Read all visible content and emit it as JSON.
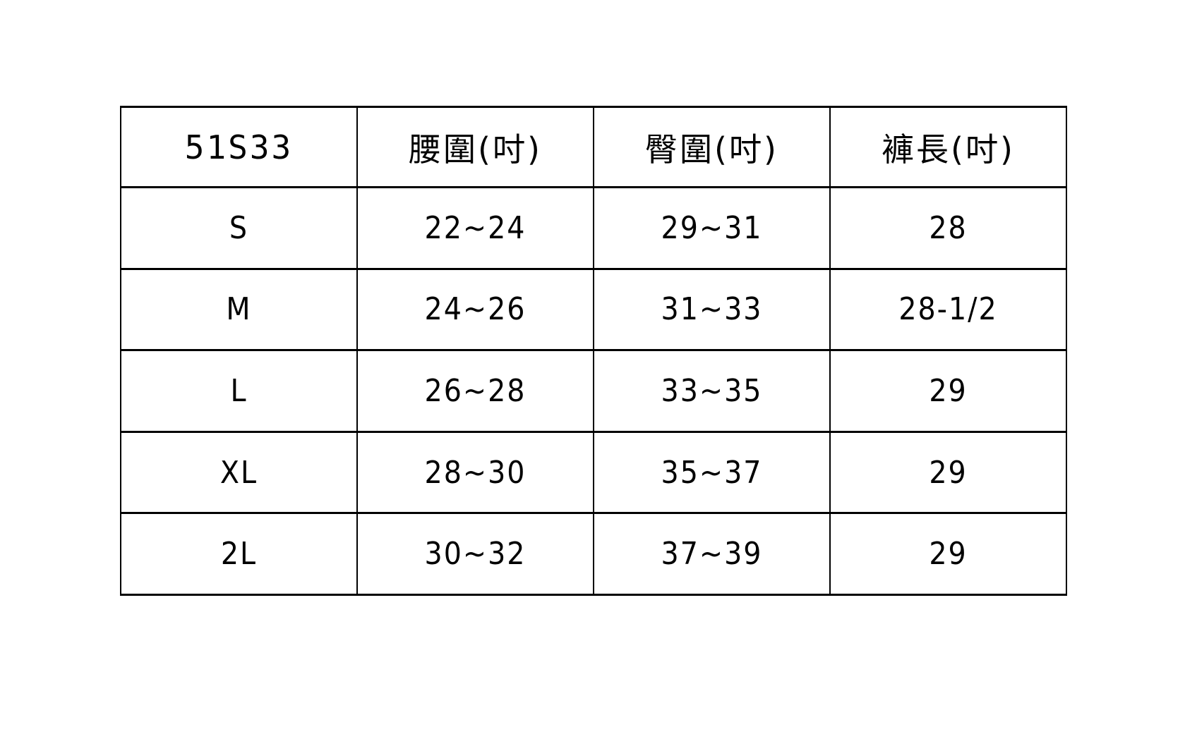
{
  "table": {
    "product_code": "51S33",
    "headers": {
      "code": "51S33",
      "waist": "腰圍(吋)",
      "hip": "臀圍(吋)",
      "length": "褲長(吋)"
    },
    "rows": [
      {
        "size": "S",
        "waist": "22~24",
        "hip": "29~31",
        "length": "28"
      },
      {
        "size": "M",
        "waist": "24~26",
        "hip": "31~33",
        "length": "28-1/2"
      },
      {
        "size": "L",
        "waist": "26~28",
        "hip": "33~35",
        "length": "29"
      },
      {
        "size": "XL",
        "waist": "28~30",
        "hip": "35~37",
        "length": "29"
      },
      {
        "size": "2L",
        "waist": "30~32",
        "hip": "37~39",
        "length": "29"
      }
    ],
    "colors": {
      "border": "#000000",
      "background": "#ffffff",
      "text": "#000000"
    }
  }
}
